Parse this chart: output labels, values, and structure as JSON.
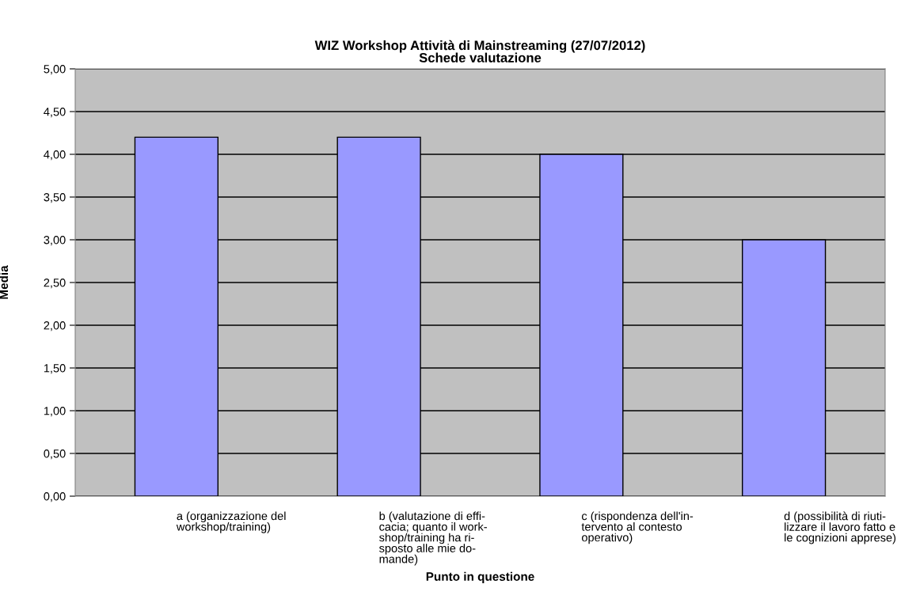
{
  "chart_data": {
    "type": "bar",
    "title": "WIZ Workshop Attività di Mainstreaming (27/07/2012)\nSchede valutazione",
    "xlabel": "Punto in questione",
    "ylabel": "Media",
    "categories": [
      "a (organizzazione del\nworkshop/training)",
      "b (valutazione di effi-\ncacia; quanto il work-\nshop/training ha ri-\nsposto alle mie do-\nmande)",
      "c (rispondenza dell'in-\ntervento al contesto\noperativo)",
      "d (possibilità di riuti-\nlizzare il lavoro fatto e\nle cognizioni apprese)"
    ],
    "values": [
      4.2,
      4.2,
      4.0,
      3.0
    ],
    "color": "#9999ff",
    "ylim": [
      0,
      5
    ],
    "yticks": [
      {
        "value": 0,
        "label": "0,00"
      },
      {
        "value": 0.5,
        "label": "0,50"
      },
      {
        "value": 1,
        "label": "1,00"
      },
      {
        "value": 1.5,
        "label": "1,50"
      },
      {
        "value": 2,
        "label": "2,00"
      },
      {
        "value": 2.5,
        "label": "2,50"
      },
      {
        "value": 3,
        "label": "3,00"
      },
      {
        "value": 3.5,
        "label": "3,50"
      },
      {
        "value": 4,
        "label": "4,00"
      },
      {
        "value": 4.5,
        "label": "4,50"
      },
      {
        "value": 5,
        "label": "5,00"
      }
    ],
    "grid": "y"
  }
}
